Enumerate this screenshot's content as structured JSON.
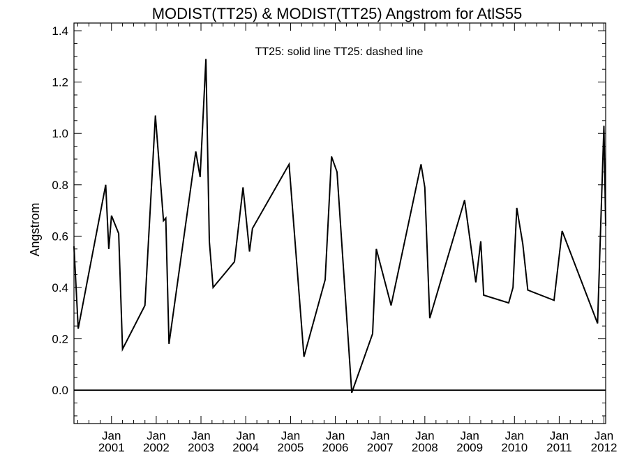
{
  "chart_data": {
    "type": "line",
    "title": "MODIST(TT25) & MODIST(TT25)  Angstrom for AtlS55",
    "xlabel": "",
    "ylabel": "Angstrom",
    "legend_text": "TT25: solid line   TT25: dashed line",
    "ylim": [
      -0.13,
      1.43
    ],
    "xlim": [
      "2000-03-01",
      "2012-01-15"
    ],
    "yticks": [
      0.0,
      0.2,
      0.4,
      0.6,
      0.8,
      1.0,
      1.2,
      1.4
    ],
    "ytick_labels": [
      "0.0",
      "0.2",
      "0.4",
      "0.6",
      "0.8",
      "1.0",
      "1.2",
      "1.4"
    ],
    "xticks": [
      {
        "date": "2001-01-01",
        "month": "Jan",
        "year": "2001"
      },
      {
        "date": "2002-01-01",
        "month": "Jan",
        "year": "2002"
      },
      {
        "date": "2003-01-01",
        "month": "Jan",
        "year": "2003"
      },
      {
        "date": "2004-01-01",
        "month": "Jan",
        "year": "2004"
      },
      {
        "date": "2005-01-01",
        "month": "Jan",
        "year": "2005"
      },
      {
        "date": "2006-01-01",
        "month": "Jan",
        "year": "2006"
      },
      {
        "date": "2007-01-01",
        "month": "Jan",
        "year": "2007"
      },
      {
        "date": "2008-01-01",
        "month": "Jan",
        "year": "2008"
      },
      {
        "date": "2009-01-01",
        "month": "Jan",
        "year": "2009"
      },
      {
        "date": "2010-01-01",
        "month": "Jan",
        "year": "2010"
      },
      {
        "date": "2011-01-01",
        "month": "Jan",
        "year": "2011"
      },
      {
        "date": "2012-01-01",
        "month": "Jan",
        "year": "2012"
      }
    ],
    "hline": 0.0,
    "grid": false,
    "series": [
      {
        "name": "TT25",
        "style": "solid",
        "color": "#000000",
        "points": [
          [
            "2000-03-01",
            0.56
          ],
          [
            "2000-04-05",
            0.24
          ],
          [
            "2000-11-15",
            0.8
          ],
          [
            "2000-12-10",
            0.55
          ],
          [
            "2001-01-01",
            0.68
          ],
          [
            "2001-03-01",
            0.61
          ],
          [
            "2001-04-01",
            0.16
          ],
          [
            "2001-10-01",
            0.33
          ],
          [
            "2001-12-25",
            1.07
          ],
          [
            "2002-03-01",
            0.66
          ],
          [
            "2002-03-20",
            0.67
          ],
          [
            "2002-04-15",
            0.18
          ],
          [
            "2002-11-20",
            0.93
          ],
          [
            "2002-12-25",
            0.83
          ],
          [
            "2003-02-10",
            1.29
          ],
          [
            "2003-03-10",
            0.58
          ],
          [
            "2003-04-10",
            0.4
          ],
          [
            "2003-10-01",
            0.5
          ],
          [
            "2003-12-10",
            0.79
          ],
          [
            "2004-02-01",
            0.54
          ],
          [
            "2004-02-25",
            0.63
          ],
          [
            "2004-12-20",
            0.88
          ],
          [
            "2005-04-20",
            0.13
          ],
          [
            "2005-10-10",
            0.43
          ],
          [
            "2005-12-01",
            0.91
          ],
          [
            "2006-01-15",
            0.85
          ],
          [
            "2006-05-15",
            -0.01
          ],
          [
            "2006-11-01",
            0.22
          ],
          [
            "2006-12-01",
            0.55
          ],
          [
            "2007-04-01",
            0.33
          ],
          [
            "2007-12-01",
            0.88
          ],
          [
            "2008-01-01",
            0.79
          ],
          [
            "2008-02-10",
            0.28
          ],
          [
            "2008-11-20",
            0.74
          ],
          [
            "2009-02-20",
            0.42
          ],
          [
            "2009-04-01",
            0.58
          ],
          [
            "2009-04-25",
            0.37
          ],
          [
            "2009-11-15",
            0.34
          ],
          [
            "2009-12-20",
            0.4
          ],
          [
            "2010-01-20",
            0.71
          ],
          [
            "2010-03-10",
            0.57
          ],
          [
            "2010-04-20",
            0.39
          ],
          [
            "2010-11-20",
            0.35
          ],
          [
            "2011-01-25",
            0.62
          ],
          [
            "2011-11-10",
            0.26
          ],
          [
            "2012-01-01",
            1.03
          ],
          [
            "2012-01-15",
            0.64
          ]
        ]
      }
    ]
  }
}
